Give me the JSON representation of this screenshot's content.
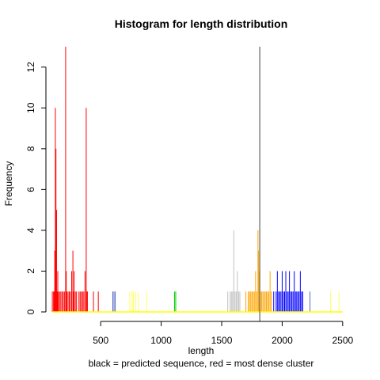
{
  "chart_data": {
    "type": "histogram",
    "title": "Histogram for length distribution",
    "xlabel": "length",
    "ylabel": "Frequency",
    "subtitle": "black = predicted sequence, red = most dense cluster",
    "xlim": [
      60,
      2560
    ],
    "ylim": [
      0,
      13
    ],
    "x_ticks": [
      500,
      1000,
      1500,
      2000,
      2500
    ],
    "y_ticks": [
      0,
      2,
      4,
      6,
      8,
      10,
      12
    ],
    "baseline": {
      "from": 100,
      "to": 2500,
      "color": "#ffff00"
    },
    "reference_line": {
      "x": 1815,
      "color": "#808080"
    },
    "series": [
      {
        "color": "#ff0000",
        "bins": [
          [
            100,
            1
          ],
          [
            110,
            1
          ],
          [
            115,
            1
          ],
          [
            120,
            3
          ],
          [
            125,
            10
          ],
          [
            130,
            8
          ],
          [
            135,
            5
          ],
          [
            140,
            1
          ],
          [
            145,
            2
          ],
          [
            150,
            1
          ],
          [
            160,
            1
          ],
          [
            170,
            1
          ],
          [
            180,
            1
          ],
          [
            190,
            1
          ],
          [
            200,
            1
          ],
          [
            210,
            13
          ],
          [
            215,
            2
          ],
          [
            220,
            1
          ],
          [
            230,
            1
          ],
          [
            240,
            1
          ],
          [
            250,
            1
          ],
          [
            260,
            2
          ],
          [
            270,
            3
          ],
          [
            275,
            1
          ],
          [
            280,
            2
          ],
          [
            290,
            1
          ],
          [
            300,
            1
          ],
          [
            320,
            1
          ],
          [
            330,
            1
          ],
          [
            340,
            1
          ],
          [
            350,
            1
          ],
          [
            360,
            1
          ],
          [
            370,
            2
          ],
          [
            380,
            10
          ],
          [
            385,
            1
          ],
          [
            390,
            1
          ],
          [
            440,
            1
          ],
          [
            480,
            1
          ]
        ]
      },
      {
        "color": "#5a6ec8",
        "bins": [
          [
            600,
            1
          ],
          [
            610,
            1
          ],
          [
            620,
            1
          ],
          [
            2230,
            1
          ]
        ]
      },
      {
        "color": "#ffff66",
        "bins": [
          [
            740,
            1
          ],
          [
            760,
            1
          ],
          [
            770,
            1
          ],
          [
            790,
            1
          ],
          [
            810,
            1
          ],
          [
            880,
            1
          ],
          [
            2400,
            1
          ],
          [
            2470,
            1
          ]
        ]
      },
      {
        "color": "#00cc00",
        "bins": [
          [
            1110,
            1
          ],
          [
            1120,
            1
          ]
        ]
      },
      {
        "color": "#c0c0c0",
        "bins": [
          [
            1550,
            1
          ],
          [
            1570,
            1
          ],
          [
            1580,
            1
          ],
          [
            1590,
            1
          ],
          [
            1600,
            4
          ],
          [
            1610,
            1
          ],
          [
            1620,
            1
          ],
          [
            1630,
            2
          ],
          [
            1640,
            1
          ],
          [
            1650,
            1
          ]
        ]
      },
      {
        "color": "#ffa500",
        "bins": [
          [
            1700,
            1
          ],
          [
            1720,
            1
          ],
          [
            1730,
            1
          ],
          [
            1740,
            1
          ],
          [
            1750,
            1
          ],
          [
            1760,
            1
          ],
          [
            1770,
            1
          ],
          [
            1780,
            2
          ],
          [
            1790,
            1
          ],
          [
            1800,
            4
          ],
          [
            1805,
            3
          ],
          [
            1810,
            2
          ],
          [
            1820,
            1
          ],
          [
            1830,
            1
          ],
          [
            1840,
            1
          ],
          [
            1850,
            1
          ],
          [
            1860,
            1
          ],
          [
            1870,
            1
          ],
          [
            1880,
            1
          ],
          [
            1890,
            1
          ],
          [
            1900,
            2
          ],
          [
            1910,
            1
          ]
        ]
      },
      {
        "color": "#0000ff",
        "bins": [
          [
            1930,
            1
          ],
          [
            1950,
            1
          ],
          [
            1960,
            2
          ],
          [
            1970,
            1
          ],
          [
            1980,
            1
          ],
          [
            1990,
            1
          ],
          [
            2000,
            2
          ],
          [
            2010,
            1
          ],
          [
            2020,
            1
          ],
          [
            2030,
            2
          ],
          [
            2040,
            1
          ],
          [
            2050,
            1
          ],
          [
            2060,
            2
          ],
          [
            2070,
            1
          ],
          [
            2080,
            1
          ],
          [
            2090,
            1
          ],
          [
            2100,
            2
          ],
          [
            2110,
            1
          ],
          [
            2120,
            1
          ],
          [
            2130,
            1
          ],
          [
            2140,
            1
          ],
          [
            2150,
            2
          ],
          [
            2160,
            1
          ],
          [
            2170,
            1
          ]
        ]
      }
    ]
  }
}
